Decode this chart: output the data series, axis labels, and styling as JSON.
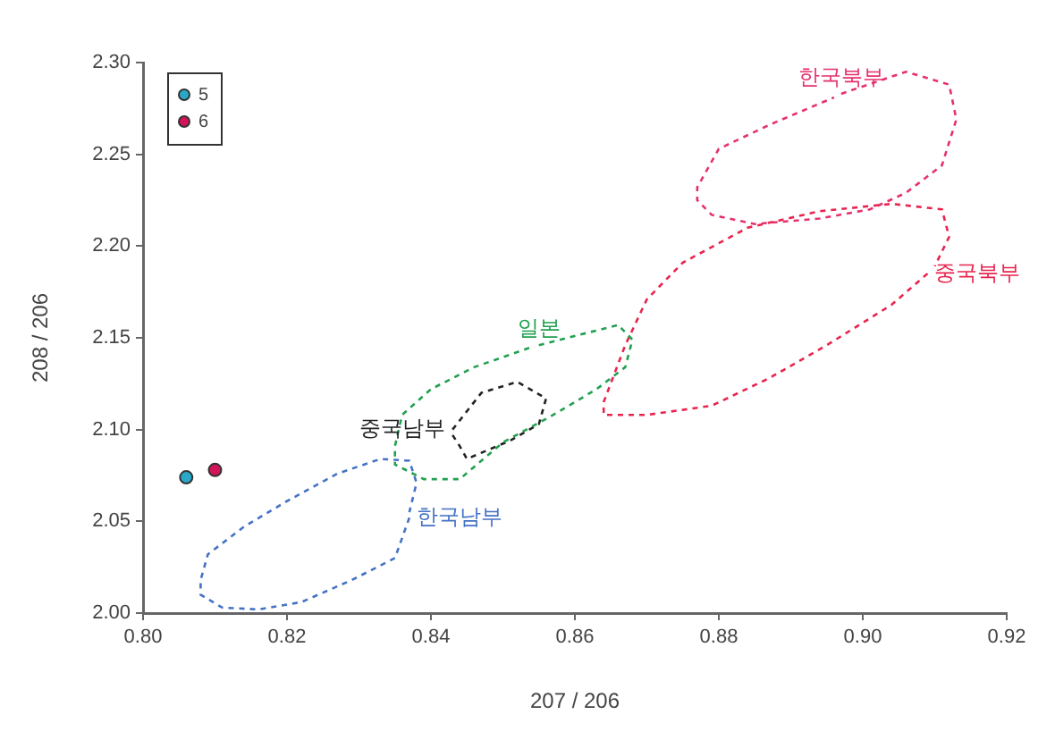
{
  "chart_data": {
    "type": "line",
    "xlabel": "207 / 206",
    "ylabel": "208 / 206",
    "xlim": [
      0.8,
      0.92
    ],
    "ylim": [
      2.0,
      2.3
    ],
    "xticks": [
      {
        "value": 0.8,
        "label": "0.80"
      },
      {
        "value": 0.82,
        "label": "0.82"
      },
      {
        "value": 0.84,
        "label": "0.84"
      },
      {
        "value": 0.86,
        "label": "0.86"
      },
      {
        "value": 0.88,
        "label": "0.88"
      },
      {
        "value": 0.9,
        "label": "0.90"
      },
      {
        "value": 0.92,
        "label": "0.92"
      }
    ],
    "yticks": [
      {
        "value": 2.0,
        "label": "2.00"
      },
      {
        "value": 2.05,
        "label": "2.05"
      },
      {
        "value": 2.1,
        "label": "2.10"
      },
      {
        "value": 2.15,
        "label": "2.15"
      },
      {
        "value": 2.2,
        "label": "2.20"
      },
      {
        "value": 2.25,
        "label": "2.25"
      },
      {
        "value": 2.3,
        "label": "2.30"
      }
    ],
    "grid": false,
    "legend": "top left",
    "marker": "none",
    "line_style": "dashed",
    "series": [
      {
        "name": "한국남부",
        "color": "#4472c4",
        "x": [
          0.837,
          0.835,
          0.829,
          0.822,
          0.816,
          0.811,
          0.808,
          0.808,
          0.809,
          0.814,
          0.82,
          0.827,
          0.833,
          0.837,
          0.838,
          0.837
        ],
        "values": [
          2.052,
          2.03,
          2.018,
          2.006,
          2.002,
          2.003,
          2.01,
          2.018,
          2.032,
          2.047,
          2.061,
          2.076,
          2.084,
          2.083,
          2.071,
          2.055
        ]
      },
      {
        "name": "일본",
        "color": "#22a050",
        "x": [
          0.855,
          0.866,
          0.868,
          0.867,
          0.863,
          0.857,
          0.85,
          0.844,
          0.839,
          0.835,
          0.835,
          0.836,
          0.84,
          0.846,
          0.854
        ],
        "values": [
          2.146,
          2.157,
          2.149,
          2.134,
          2.122,
          2.108,
          2.093,
          2.073,
          2.073,
          2.081,
          2.091,
          2.108,
          2.122,
          2.134,
          2.145
        ]
      },
      {
        "name": "중국남부",
        "color": "#222222",
        "x": [
          0.843,
          0.847,
          0.852,
          0.856,
          0.855,
          0.851,
          0.845,
          0.844,
          0.843
        ],
        "values": [
          2.1,
          2.12,
          2.126,
          2.117,
          2.103,
          2.094,
          2.084,
          2.091,
          2.097
        ]
      },
      {
        "name": "한국북부",
        "color": "#e6306e",
        "x": [
          0.897,
          0.906,
          0.912,
          0.913,
          0.911,
          0.906,
          0.901,
          0.894,
          0.885,
          0.879,
          0.877,
          0.877,
          0.88,
          0.887,
          0.896
        ],
        "values": [
          2.283,
          2.295,
          2.288,
          2.269,
          2.244,
          2.229,
          2.22,
          2.215,
          2.212,
          2.217,
          2.225,
          2.232,
          2.253,
          2.266,
          2.281
        ]
      },
      {
        "name": "중국북부",
        "color": "#e8244e",
        "x": [
          0.909,
          0.904,
          0.895,
          0.887,
          0.879,
          0.87,
          0.864,
          0.864,
          0.867,
          0.87,
          0.875,
          0.884,
          0.894,
          0.904,
          0.911,
          0.912,
          0.91
        ],
        "values": [
          2.185,
          2.168,
          2.146,
          2.128,
          2.113,
          2.108,
          2.108,
          2.115,
          2.146,
          2.171,
          2.191,
          2.21,
          2.219,
          2.223,
          2.22,
          2.205,
          2.189
        ]
      },
      {
        "name": "5",
        "type": "scatter",
        "marker": "circle",
        "color": "#2aa8c8",
        "x": [
          0.806
        ],
        "values": [
          2.074
        ]
      },
      {
        "name": "6",
        "type": "scatter",
        "marker": "circle",
        "color": "#d4145a",
        "x": [
          0.81
        ],
        "values": [
          2.078
        ]
      }
    ]
  }
}
